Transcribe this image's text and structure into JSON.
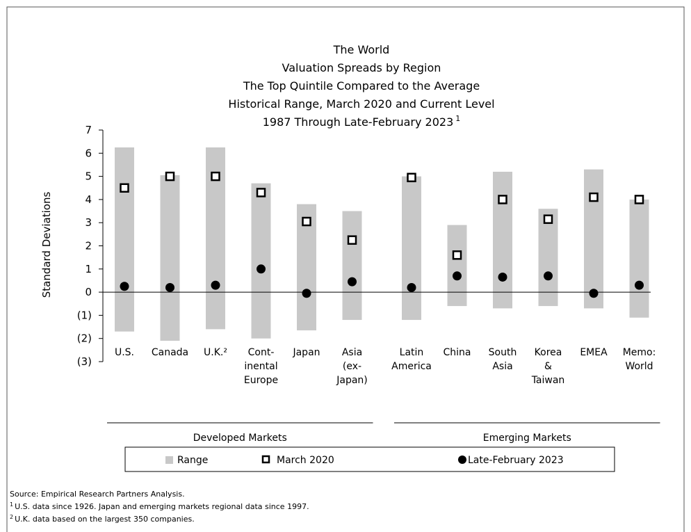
{
  "chart_data": {
    "type": "range-dot",
    "title": [
      "The World",
      "Valuation Spreads by Region",
      "The Top Quintile Compared to the Average",
      "Historical Range, March 2020 and Current Level",
      "1987 Through Late-February 2023"
    ],
    "title_marker": "1",
    "y_label": "Standard Deviations",
    "groups": [
      {
        "label": "Developed Markets",
        "categories": [
          "U.S.",
          "Canada",
          "U.K.²",
          "Cont-\ninental\nEurope",
          "Japan",
          "Asia\n(ex-\nJapan)"
        ]
      },
      {
        "label": "Emerging Markets",
        "categories": [
          "Latin\nAmerica",
          "China",
          "South\nAsia",
          "Korea\n&\nTaiwan",
          "EMEA",
          "Memo:\nWorld"
        ]
      }
    ],
    "series": [
      {
        "name": "Range",
        "color": "#c8c8c8",
        "low": [
          -1.7,
          -2.1,
          -1.6,
          -2.0,
          -1.65,
          -1.2,
          -1.2,
          -0.6,
          -0.7,
          -0.6,
          -0.7,
          -1.1
        ],
        "high": [
          6.25,
          5.05,
          6.25,
          4.7,
          3.8,
          3.5,
          5.0,
          2.9,
          5.2,
          3.6,
          5.3,
          4.0
        ]
      },
      {
        "name": "March 2020",
        "color": "#000000",
        "values": [
          4.5,
          5.0,
          5.0,
          4.3,
          3.05,
          2.25,
          4.95,
          1.6,
          4.0,
          3.15,
          4.1,
          4.0
        ]
      },
      {
        "name": "Late-February 2023",
        "color": "#000000",
        "values": [
          0.25,
          0.2,
          0.3,
          1.0,
          -0.05,
          0.45,
          0.2,
          0.7,
          0.65,
          0.7,
          -0.05,
          0.3
        ]
      }
    ],
    "ylim": [
      -3,
      7
    ],
    "yticks": [
      {
        "value": -3,
        "label": "(3)"
      },
      {
        "value": -2,
        "label": "(2)"
      },
      {
        "value": -1,
        "label": "(1)"
      },
      0,
      1,
      2,
      3,
      4,
      5,
      6,
      7
    ],
    "notes": [
      {
        "text": "Source: Empirical Research Partners Analysis."
      },
      {
        "marker": "1",
        "text": "U.S. data since 1926.  Japan and emerging markets regional data since 1997."
      },
      {
        "marker": "2",
        "text": "U.K. data based on the largest 350 companies."
      }
    ]
  }
}
